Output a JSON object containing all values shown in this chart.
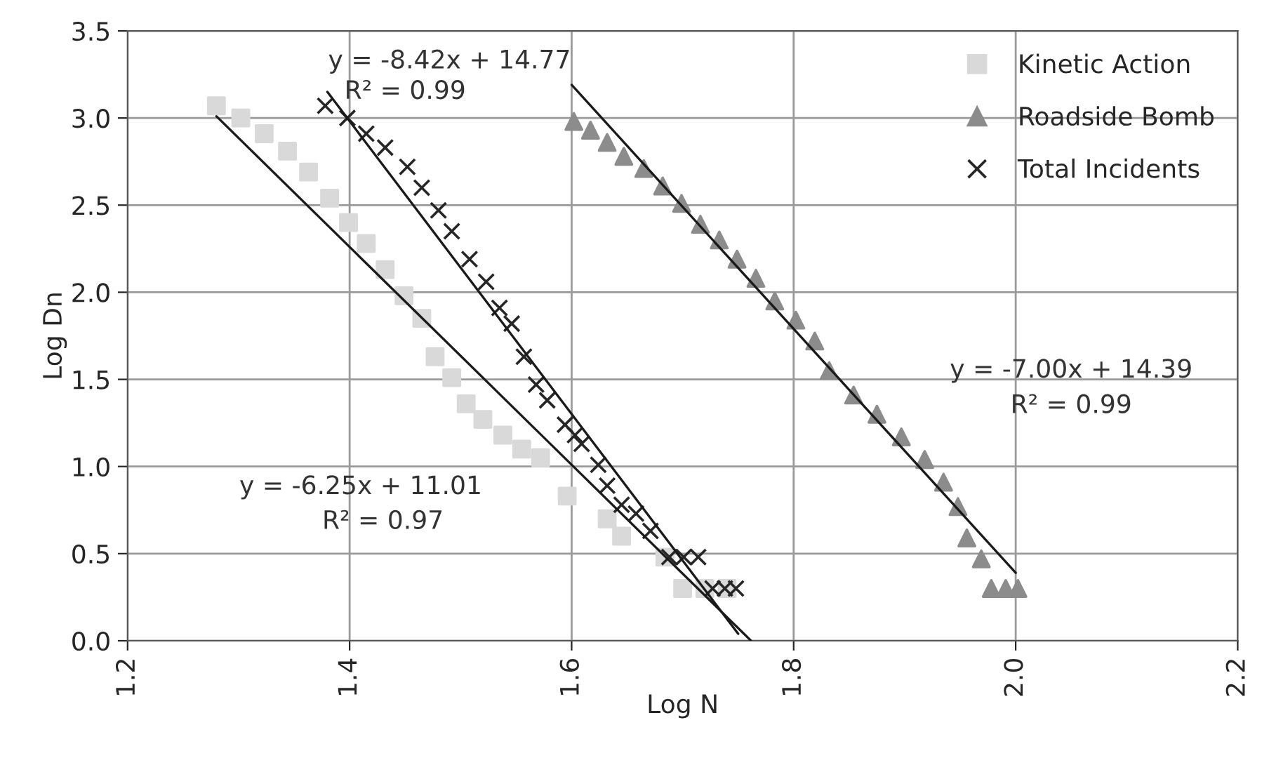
{
  "chart_data": {
    "type": "scatter",
    "xlabel": "Log N",
    "ylabel": "Log Dn",
    "xlim": [
      1.2,
      2.2
    ],
    "ylim": [
      0,
      3.5
    ],
    "xticks": [
      {
        "value": 1.2,
        "label": "1.2"
      },
      {
        "value": 1.4,
        "label": "1.4"
      },
      {
        "value": 1.6,
        "label": "1.6"
      },
      {
        "value": 1.8,
        "label": "1.8"
      },
      {
        "value": 2.0,
        "label": "2.0"
      },
      {
        "value": 2.2,
        "label": "2.2"
      }
    ],
    "yticks": [
      {
        "value": 0,
        "label": "0.0"
      },
      {
        "value": 0.5,
        "label": "0.5"
      },
      {
        "value": 1.0,
        "label": "1.0"
      },
      {
        "value": 1.5,
        "label": "1.5"
      },
      {
        "value": 2.0,
        "label": "2.0"
      },
      {
        "value": 2.5,
        "label": "2.5"
      },
      {
        "value": 3.0,
        "label": "3.0"
      },
      {
        "value": 3.5,
        "label": "3.5"
      }
    ],
    "grid": true,
    "legend": "top right",
    "series": [
      {
        "name": "Kinetic Action",
        "marker": "square",
        "color": "#d9d9d9",
        "x": [
          1.28,
          1.302,
          1.323,
          1.344,
          1.363,
          1.382,
          1.399,
          1.415,
          1.432,
          1.449,
          1.465,
          1.477,
          1.492,
          1.505,
          1.52,
          1.538,
          1.555,
          1.572,
          1.596,
          1.632,
          1.645,
          1.684,
          1.7,
          1.72,
          1.74
        ],
        "values": [
          3.07,
          3.0,
          2.91,
          2.81,
          2.69,
          2.54,
          2.4,
          2.28,
          2.13,
          1.98,
          1.85,
          1.63,
          1.51,
          1.36,
          1.27,
          1.18,
          1.1,
          1.05,
          0.83,
          0.7,
          0.6,
          0.48,
          0.3,
          0.3,
          0.3
        ]
      },
      {
        "name": "Roadside Bomb",
        "marker": "triangle",
        "color": "#8c8c8c",
        "x": [
          1.602,
          1.617,
          1.632,
          1.647,
          1.665,
          1.682,
          1.699,
          1.716,
          1.733,
          1.749,
          1.766,
          1.783,
          1.802,
          1.819,
          1.832,
          1.854,
          1.875,
          1.897,
          1.918,
          1.935,
          1.948,
          1.956,
          1.969,
          1.978,
          1.991,
          2.002
        ],
        "values": [
          2.98,
          2.93,
          2.86,
          2.78,
          2.71,
          2.61,
          2.51,
          2.39,
          2.3,
          2.19,
          2.08,
          1.95,
          1.84,
          1.72,
          1.55,
          1.41,
          1.3,
          1.17,
          1.04,
          0.91,
          0.77,
          0.59,
          0.47,
          0.3,
          0.3,
          0.3
        ]
      },
      {
        "name": "Total Incidents",
        "marker": "cross",
        "color": "#262626",
        "x": [
          1.378,
          1.398,
          1.415,
          1.432,
          1.452,
          1.465,
          1.48,
          1.492,
          1.508,
          1.523,
          1.535,
          1.546,
          1.557,
          1.568,
          1.578,
          1.594,
          1.603,
          1.609,
          1.624,
          1.632,
          1.645,
          1.658,
          1.671,
          1.688,
          1.701,
          1.714,
          1.727,
          1.738,
          1.748
        ],
        "values": [
          3.07,
          3.0,
          2.91,
          2.83,
          2.72,
          2.6,
          2.47,
          2.35,
          2.19,
          2.06,
          1.91,
          1.82,
          1.63,
          1.47,
          1.38,
          1.24,
          1.18,
          1.13,
          1.01,
          0.89,
          0.78,
          0.73,
          0.63,
          0.48,
          0.48,
          0.48,
          0.3,
          0.3,
          0.3
        ]
      },
      {
        "type": "line",
        "marker": "none",
        "color": "#1a1a1a",
        "x": [
          1.28,
          1.7616
        ],
        "values": [
          3.01,
          0.0
        ]
      },
      {
        "type": "line",
        "marker": "none",
        "color": "#1a1a1a",
        "x": [
          1.38,
          1.75
        ],
        "values": [
          3.15,
          0.04
        ]
      },
      {
        "type": "line",
        "marker": "none",
        "color": "#1a1a1a",
        "x": [
          1.6,
          2.0
        ],
        "values": [
          3.19,
          0.39
        ]
      }
    ],
    "annotations": [
      "y = -8.42x + 14.77",
      "R² = 0.99",
      "y = -6.25x + 11.01",
      "R² = 0.97",
      "y = -7.00x + 14.39",
      "R² = 0.99"
    ]
  }
}
